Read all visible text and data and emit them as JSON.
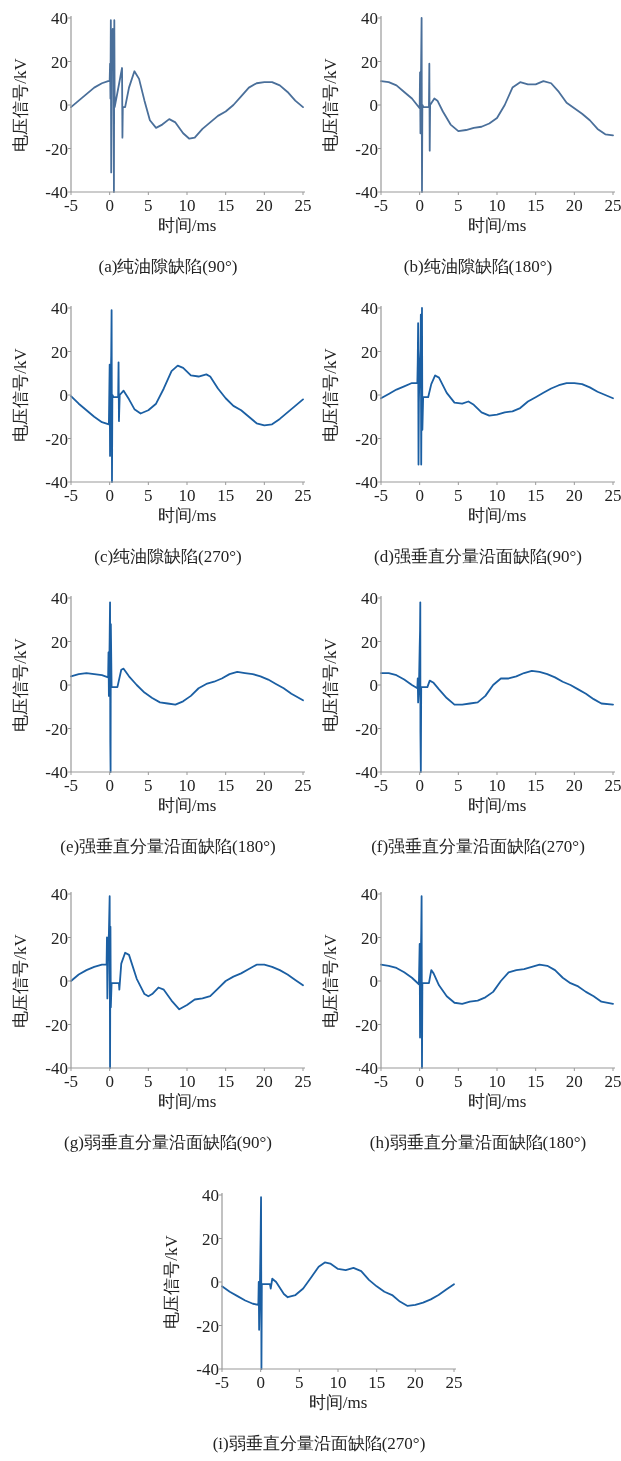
{
  "chart_data": [
    {
      "type": "line",
      "title": "(a)纯油隙缺陷(90°)",
      "xlabel": "时间/ms",
      "ylabel": "电压信号/kV",
      "xlim": [
        -5,
        25
      ],
      "ylim": [
        -40,
        40
      ],
      "xticks": [
        -5,
        0,
        5,
        10,
        15,
        20,
        25
      ],
      "yticks": [
        -40,
        -20,
        0,
        20,
        40
      ],
      "x": [
        -5,
        -4,
        -3,
        -2,
        -1,
        -0.2,
        0,
        0.05,
        0.1,
        0.15,
        0.2,
        0.3,
        0.4,
        0.5,
        0.55,
        0.6,
        0.65,
        1.6,
        1.65,
        1.7,
        2,
        2.5,
        3.2,
        3.8,
        4.5,
        5.2,
        6,
        6.8,
        7.7,
        8.5,
        9.5,
        10.3,
        11,
        12,
        13,
        14,
        15,
        16,
        17,
        18,
        19,
        20,
        21,
        22,
        23,
        24,
        25
      ],
      "series": [
        {
          "color": "#4a6f9a",
          "values": [
            -1,
            2,
            5,
            8,
            10,
            11,
            11,
            19,
            3,
            39,
            -31,
            30,
            35,
            32,
            -40,
            39,
            -1,
            17,
            -15,
            -1,
            -1,
            8,
            15.5,
            12,
            2,
            -7,
            -10.5,
            -9,
            -6.5,
            -8,
            -13,
            -15.5,
            -15,
            -11,
            -8,
            -5,
            -3,
            0,
            4,
            8,
            10,
            10.5,
            10.5,
            9,
            6,
            2,
            -1
          ]
        }
      ]
    },
    {
      "type": "line",
      "title": "(b)纯油隙缺陷(180°)",
      "xlabel": "时间/ms",
      "ylabel": "电压信号/kV",
      "xlim": [
        -5,
        25
      ],
      "ylim": [
        -40,
        40
      ],
      "xticks": [
        -5,
        0,
        5,
        10,
        15,
        20,
        25
      ],
      "yticks": [
        -40,
        -20,
        0,
        20,
        40
      ],
      "x": [
        -5,
        -4,
        -3,
        -2,
        -1,
        0,
        0.05,
        0.1,
        0.2,
        0.25,
        0.3,
        0.35,
        0.5,
        1.2,
        1.25,
        1.3,
        1.35,
        1.9,
        2.3,
        3,
        4,
        5,
        6,
        7,
        8,
        9,
        10,
        11,
        12,
        13,
        14,
        15,
        16,
        17,
        18,
        19,
        20,
        21,
        22,
        23,
        24,
        25
      ],
      "series": [
        {
          "color": "#4a6f9a",
          "values": [
            11,
            10.5,
            9,
            6,
            3,
            -1.5,
            15,
            -13,
            23,
            40,
            -40,
            0,
            -1,
            -1,
            19,
            -21,
            0,
            3,
            2,
            -3,
            -9,
            -12,
            -11.5,
            -10.5,
            -10,
            -8.5,
            -6,
            0,
            8,
            10.5,
            9.5,
            9.5,
            11,
            10,
            6,
            1,
            -1.5,
            -4,
            -7,
            -11,
            -13.5,
            -14
          ]
        }
      ]
    },
    {
      "type": "line",
      "title": "(c)纯油隙缺陷(270°)",
      "xlabel": "时间/ms",
      "ylabel": "电压信号/kV",
      "xlim": [
        -5,
        25
      ],
      "ylim": [
        -40,
        40
      ],
      "xticks": [
        -5,
        0,
        5,
        10,
        15,
        20,
        25
      ],
      "yticks": [
        -40,
        -20,
        0,
        20,
        40
      ],
      "x": [
        -5,
        -4,
        -3,
        -2,
        -1,
        -0.1,
        0,
        0.05,
        0.1,
        0.2,
        0.25,
        0.3,
        0.35,
        0.5,
        1.1,
        1.15,
        1.2,
        1.3,
        1.8,
        2.5,
        3.2,
        4,
        5,
        6,
        7,
        8,
        8.8,
        9.5,
        10.5,
        11.5,
        12.5,
        13,
        14,
        15,
        16,
        17,
        18,
        19,
        20,
        21,
        22,
        23,
        24,
        25
      ],
      "series": [
        {
          "color": "#1b5fa3",
          "values": [
            -0.5,
            -4,
            -7,
            -10,
            -12.5,
            -13.5,
            14,
            -28,
            0,
            18,
            39,
            -40,
            0,
            -1,
            -1,
            15,
            -12,
            0,
            2,
            -2,
            -6.5,
            -8.5,
            -7,
            -4,
            3,
            11,
            13.5,
            12.5,
            9,
            8.5,
            9.5,
            8.5,
            3,
            -1.5,
            -5,
            -7,
            -10,
            -13,
            -14,
            -13.5,
            -11,
            -8,
            -5,
            -2
          ]
        }
      ]
    },
    {
      "type": "line",
      "title": "(d)强垂直分量沿面缺陷(90°)",
      "xlabel": "时间/ms",
      "ylabel": "电压信号/kV",
      "xlim": [
        -5,
        25
      ],
      "ylim": [
        -40,
        40
      ],
      "xticks": [
        -5,
        0,
        5,
        10,
        15,
        20,
        25
      ],
      "yticks": [
        -40,
        -20,
        0,
        20,
        40
      ],
      "x": [
        -5,
        -4,
        -3,
        -2,
        -1,
        -0.3,
        -0.25,
        -0.2,
        -0.15,
        -0.1,
        0,
        0.1,
        0.15,
        0.2,
        0.3,
        0.35,
        0.45,
        1.1,
        1.5,
        2,
        2.5,
        3.5,
        4.5,
        5.5,
        6.3,
        7,
        8,
        9,
        10,
        11,
        12,
        13,
        14,
        15,
        16,
        17,
        18,
        19,
        20,
        21,
        22,
        23,
        24,
        25
      ],
      "series": [
        {
          "color": "#1b5fa3",
          "values": [
            -1.5,
            0.5,
            2.5,
            4,
            5.5,
            5.5,
            15,
            33,
            -32,
            -3,
            13,
            21,
            37,
            -32,
            40,
            -16,
            -1,
            -1,
            5,
            9,
            8,
            1,
            -3.5,
            -4,
            -3,
            -4.5,
            -8,
            -9.5,
            -9,
            -8,
            -7.5,
            -6,
            -3,
            -1,
            1,
            3,
            4.5,
            5.5,
            5.5,
            5,
            3.5,
            1.5,
            0,
            -1.5
          ]
        }
      ]
    },
    {
      "type": "line",
      "title": "(e)强垂直分量沿面缺陷(180°)",
      "xlabel": "时间/ms",
      "ylabel": "电压信号/kV",
      "xlim": [
        -5,
        25
      ],
      "ylim": [
        -40,
        40
      ],
      "xticks": [
        -5,
        0,
        5,
        10,
        15,
        20,
        25
      ],
      "yticks": [
        -40,
        -20,
        0,
        20,
        40
      ],
      "x": [
        -5,
        -4,
        -3,
        -2,
        -1,
        -0.2,
        -0.15,
        -0.1,
        0,
        0.05,
        0.08,
        0.12,
        0.15,
        0.25,
        1,
        1.5,
        1.8,
        2.5,
        3.5,
        4.5,
        5.5,
        6.5,
        7.5,
        8.5,
        9.5,
        10.5,
        11.5,
        12.5,
        13.5,
        14.5,
        15.5,
        16.5,
        17.5,
        18.5,
        19.5,
        20.5,
        21.5,
        22.5,
        23.5,
        25
      ],
      "series": [
        {
          "color": "#1b5fa3",
          "values": [
            4,
            5,
            5.5,
            5,
            4.5,
            3.5,
            15,
            -5,
            22,
            38,
            -26,
            -40,
            28,
            -1,
            -1,
            7,
            7.5,
            4,
            0,
            -3.5,
            -6,
            -8,
            -8.5,
            -9,
            -7.5,
            -5,
            -1.5,
            0.5,
            1.5,
            3,
            5,
            6,
            5.5,
            5,
            4,
            2.5,
            0.5,
            -1.5,
            -4,
            -7
          ]
        }
      ]
    },
    {
      "type": "line",
      "title": "(f)强垂直分量沿面缺陷(270°)",
      "xlabel": "时间/ms",
      "ylabel": "电压信号/kV",
      "xlim": [
        -5,
        25
      ],
      "ylim": [
        -40,
        40
      ],
      "xticks": [
        -5,
        0,
        5,
        10,
        15,
        20,
        25
      ],
      "yticks": [
        -40,
        -20,
        0,
        20,
        40
      ],
      "x": [
        -5,
        -4,
        -3,
        -2,
        -1,
        -0.3,
        -0.25,
        -0.2,
        -0.1,
        0,
        0.05,
        0.08,
        0.1,
        0.15,
        0.2,
        1,
        1.3,
        1.8,
        2.5,
        3.5,
        4.5,
        5.5,
        6.5,
        7.5,
        8.5,
        9.5,
        10.5,
        11.5,
        12.5,
        13.5,
        14.5,
        15.5,
        16.5,
        17.5,
        18.5,
        19.5,
        20.5,
        21.5,
        22.5,
        23.5,
        25
      ],
      "series": [
        {
          "color": "#1b5fa3",
          "values": [
            5.5,
            5.5,
            4.5,
            2.5,
            0,
            -1.5,
            3,
            -8,
            -2,
            17,
            25,
            38,
            -22,
            -40,
            -1,
            -1,
            2,
            1,
            -2,
            -6,
            -9,
            -9,
            -8.5,
            -8,
            -5,
            0,
            3,
            3,
            4,
            5.5,
            6.5,
            6,
            5,
            3.5,
            1.5,
            0,
            -2,
            -4,
            -6.5,
            -8.5,
            -9
          ]
        }
      ]
    },
    {
      "type": "line",
      "title": "(g)弱垂直分量沿面缺陷(90°)",
      "xlabel": "时间/ms",
      "ylabel": "电压信号/kV",
      "xlim": [
        -5,
        25
      ],
      "ylim": [
        -40,
        40
      ],
      "xticks": [
        -5,
        0,
        5,
        10,
        15,
        20,
        25
      ],
      "yticks": [
        -40,
        -20,
        0,
        20,
        40
      ],
      "x": [
        -5,
        -4,
        -3,
        -2,
        -1,
        -0.4,
        -0.35,
        -0.3,
        -0.2,
        -0.1,
        0,
        0.05,
        0.1,
        0.15,
        0.25,
        1.2,
        1.25,
        1.5,
        2,
        2.5,
        3.5,
        4.5,
        5,
        5.5,
        6.3,
        7,
        8,
        9,
        10,
        11,
        12,
        13,
        14,
        15,
        16,
        17,
        18,
        19,
        20,
        21,
        22,
        23,
        24,
        25
      ],
      "series": [
        {
          "color": "#1b5fa3",
          "values": [
            0,
            3,
            5,
            6.5,
            7.5,
            7.5,
            20,
            -8,
            13,
            22,
            39,
            -40,
            25,
            -12,
            -1,
            -1,
            -4,
            8,
            13,
            12,
            1,
            -6,
            -7,
            -6,
            -3,
            -4,
            -9,
            -13,
            -11,
            -8.5,
            -8,
            -7,
            -3.5,
            0,
            2,
            3.5,
            5.5,
            7.5,
            7.5,
            6.5,
            5,
            3,
            0.5,
            -2
          ]
        }
      ]
    },
    {
      "type": "line",
      "title": "(h)弱垂直分量沿面缺陷(180°)",
      "xlabel": "时间/ms",
      "ylabel": "电压信号/kV",
      "xlim": [
        -5,
        25
      ],
      "ylim": [
        -40,
        40
      ],
      "xticks": [
        -5,
        0,
        5,
        10,
        15,
        20,
        25
      ],
      "yticks": [
        -40,
        -20,
        0,
        20,
        40
      ],
      "x": [
        -5,
        -4,
        -3,
        -2,
        -1,
        -0.1,
        0,
        0.05,
        0.1,
        0.2,
        0.25,
        0.3,
        0.35,
        1.2,
        1.5,
        1.8,
        2.5,
        3.5,
        4.5,
        5.5,
        6.5,
        7.5,
        8.5,
        9.5,
        10.5,
        11.5,
        12.5,
        13.5,
        14.5,
        15.5,
        16.5,
        17.5,
        18.5,
        19.5,
        20.5,
        21.5,
        22.5,
        23.5,
        25
      ],
      "series": [
        {
          "color": "#1b5fa3",
          "values": [
            7.5,
            7,
            6,
            4,
            1.5,
            -1.5,
            17,
            -26,
            0,
            22,
            39,
            -40,
            -1,
            -1,
            5,
            3.5,
            -2,
            -7,
            -10,
            -10.5,
            -9.5,
            -9,
            -7.5,
            -5,
            0,
            4,
            5,
            5.5,
            6.5,
            7.5,
            7,
            5,
            1.5,
            -1,
            -2.5,
            -5,
            -7,
            -9.5,
            -10.5
          ]
        }
      ]
    },
    {
      "type": "line",
      "title": "(i)弱垂直分量沿面缺陷(270°)",
      "xlabel": "时间/ms",
      "ylabel": "电压信号/kV",
      "xlim": [
        -5,
        25
      ],
      "ylim": [
        -40,
        40
      ],
      "xticks": [
        -5,
        0,
        5,
        10,
        15,
        20,
        25
      ],
      "yticks": [
        -40,
        -20,
        0,
        20,
        40
      ],
      "x": [
        -5,
        -4,
        -3,
        -2,
        -1,
        -0.3,
        -0.25,
        -0.2,
        -0.1,
        0,
        0.05,
        0.1,
        0.15,
        1.2,
        1.3,
        1.5,
        2,
        3,
        3.5,
        4.5,
        5.5,
        6.5,
        7.5,
        8.3,
        9,
        10,
        11,
        12,
        13,
        14,
        15,
        16,
        17,
        18,
        19,
        20,
        21,
        22,
        23,
        24,
        25
      ],
      "series": [
        {
          "color": "#1b5fa3",
          "values": [
            -2,
            -4.5,
            -6.5,
            -8.5,
            -10,
            -10.5,
            0,
            -22,
            -3,
            23,
            39,
            -40,
            -1,
            -1,
            -3,
            1.5,
            0,
            -5.5,
            -7,
            -6,
            -3,
            2,
            7,
            9,
            8.5,
            6,
            5.5,
            6.5,
            5,
            1,
            -2,
            -4.5,
            -6,
            -9,
            -11,
            -10.5,
            -9.5,
            -8,
            -6,
            -3.5,
            -1
          ]
        }
      ]
    }
  ]
}
